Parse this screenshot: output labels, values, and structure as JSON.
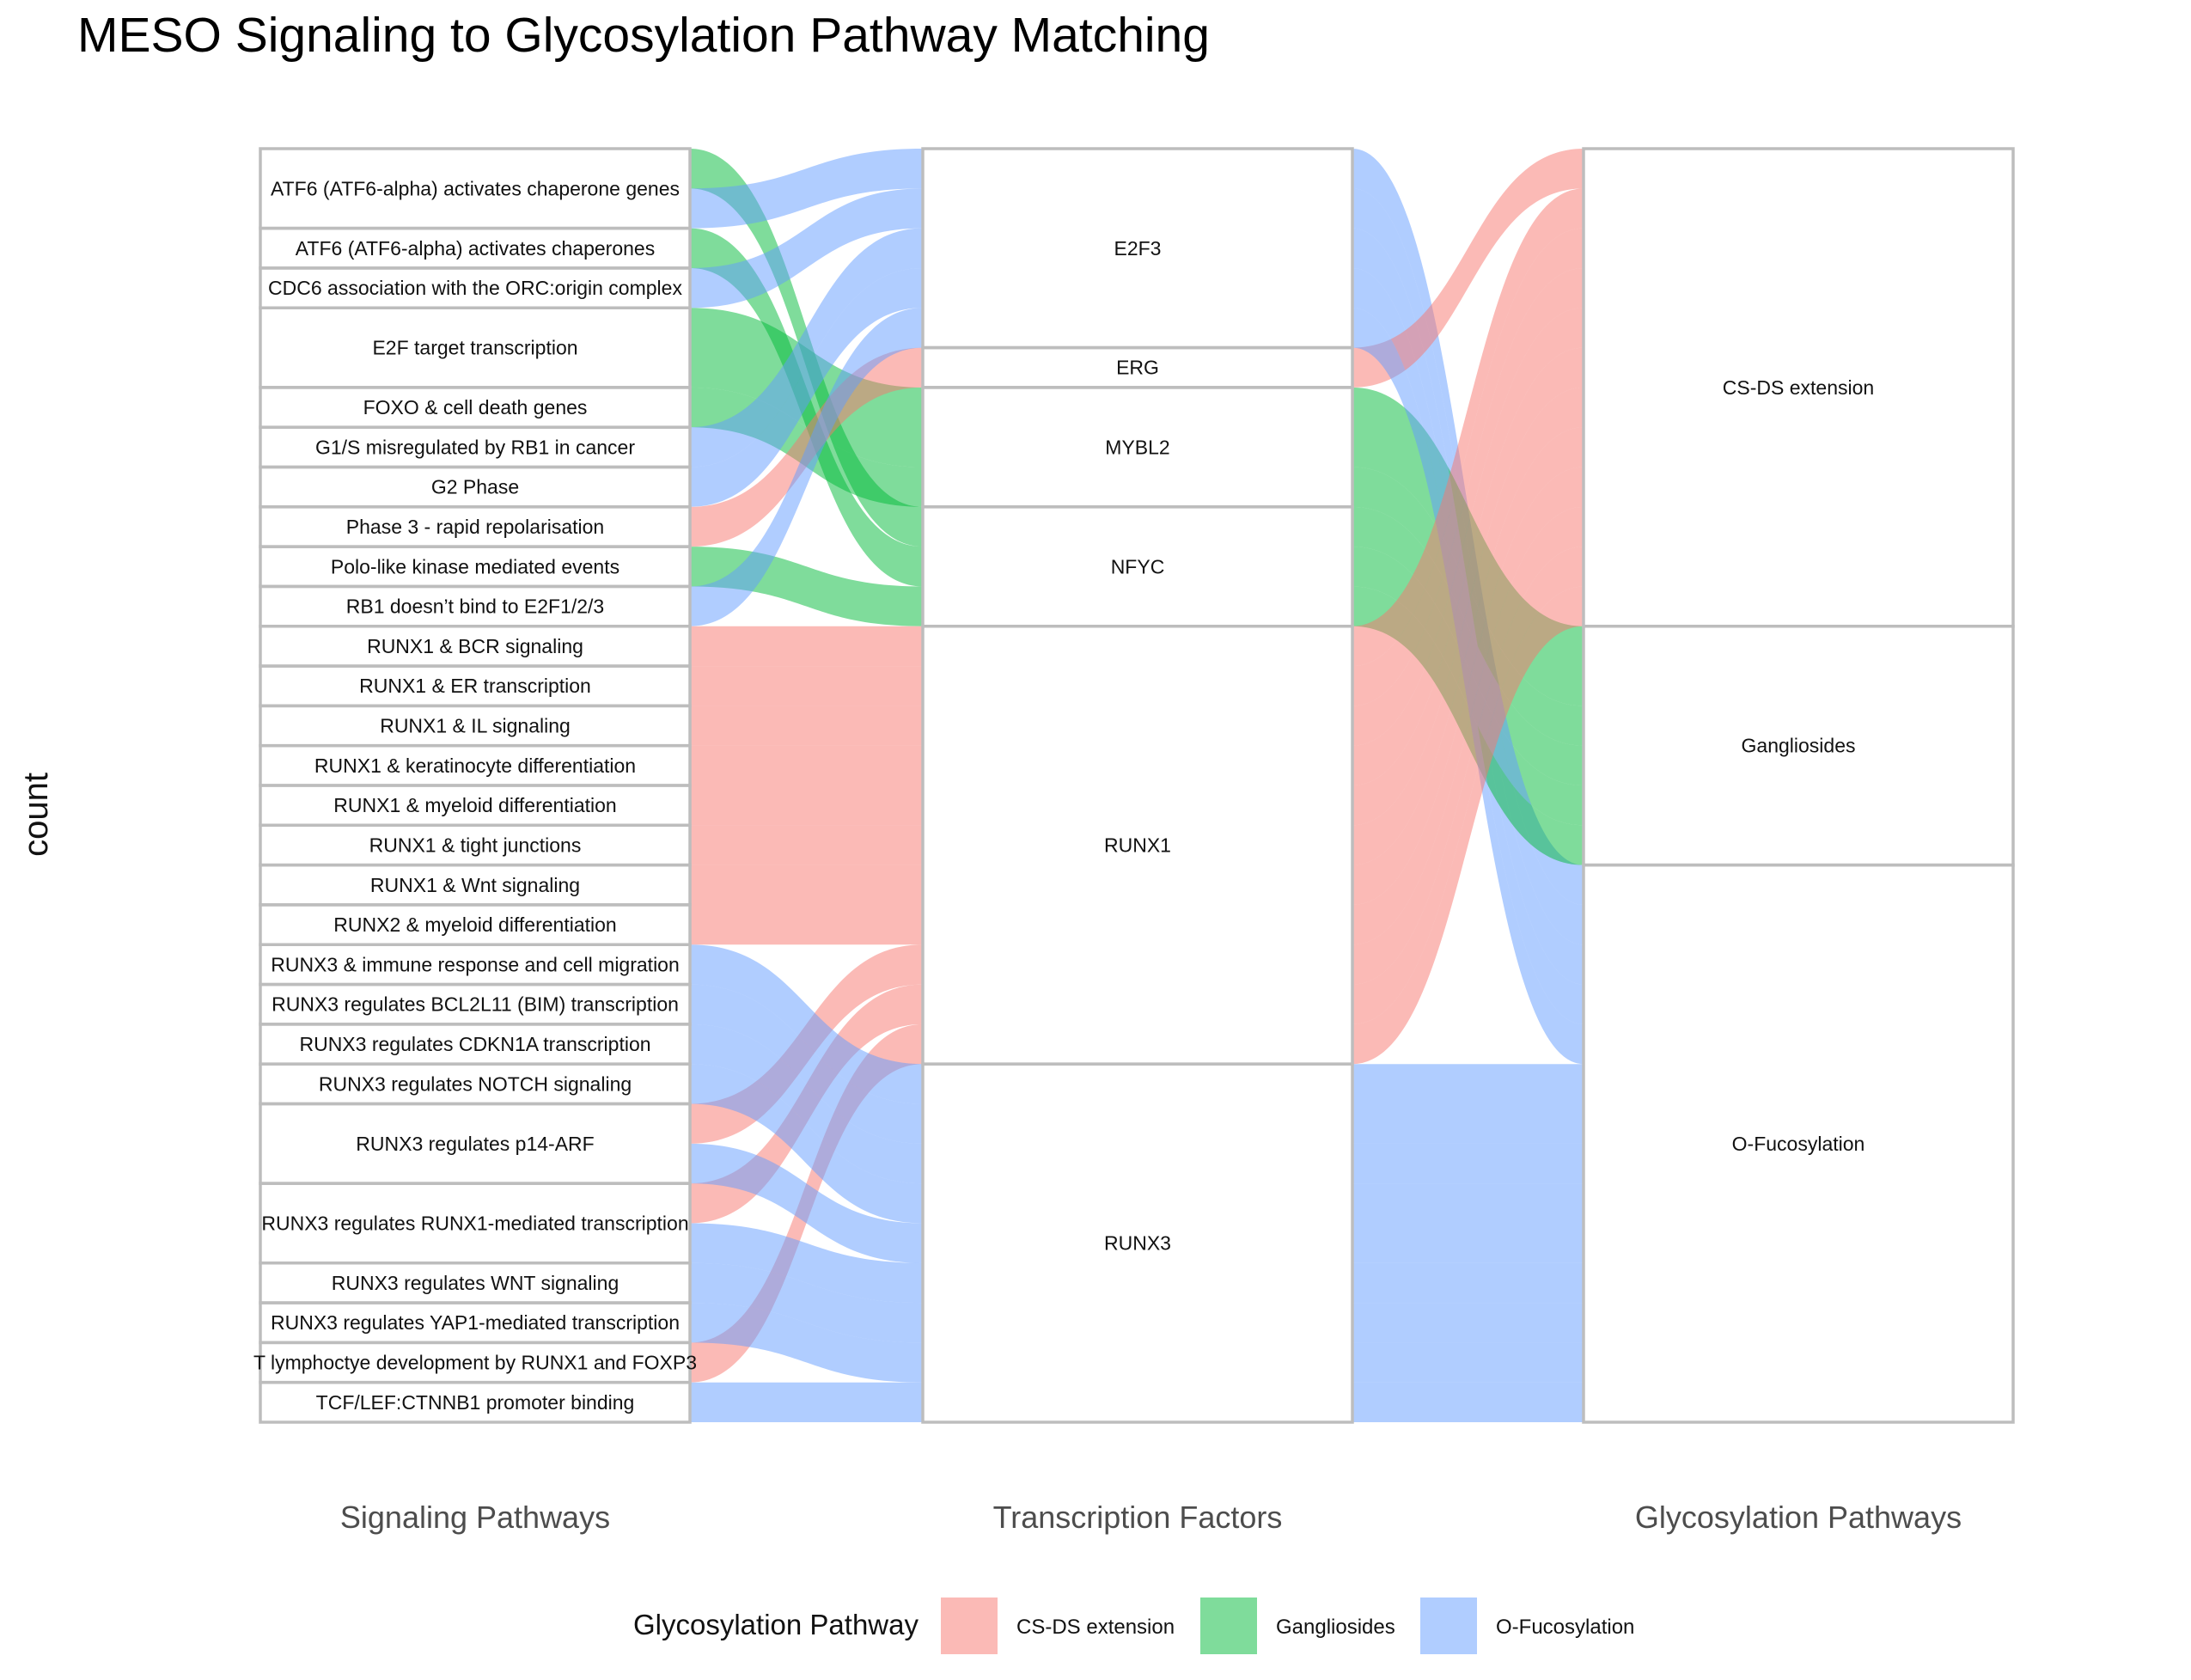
{
  "chart_data": {
    "type": "alluvial",
    "title": "MESO Signaling to Glycosylation Pathway Matching",
    "ylabel": "count",
    "axes": [
      "Signaling Pathways",
      "Transcription Factors",
      "Glycosylation Pathways"
    ],
    "legend": {
      "title": "Glycosylation Pathway",
      "position": "bottom",
      "entries": [
        "CS-DS extension",
        "Gangliosides",
        "O-Fucosylation"
      ]
    },
    "colors": {
      "CS-DS extension": "#f8766d",
      "Gangliosides": "#00ba38",
      "O-Fucosylation": "#619cff"
    },
    "signaling_pathways": [
      "ATF6 (ATF6-alpha) activates chaperone genes",
      "ATF6 (ATF6-alpha) activates chaperones",
      "CDC6 association with the ORC:origin complex",
      "E2F target transcription",
      "FOXO & cell death genes",
      "G1/S misregulated by RB1 in cancer",
      "G2 Phase",
      "Phase 3 - rapid repolarisation",
      "Polo-like kinase mediated events",
      "RB1 doesn’t bind to E2F1/2/3",
      "RUNX1 & BCR signaling",
      "RUNX1 & ER transcription",
      "RUNX1 & IL signaling",
      "RUNX1 & keratinocyte differentiation",
      "RUNX1 & myeloid differentiation",
      "RUNX1 & tight junctions",
      "RUNX1 & Wnt signaling",
      "RUNX2 & myeloid differentiation",
      "RUNX3 & immune response and cell migration",
      "RUNX3 regulates BCL2L11 (BIM) transcription",
      "RUNX3 regulates CDKN1A transcription",
      "RUNX3 regulates NOTCH signaling",
      "RUNX3 regulates p14-ARF",
      "RUNX3 regulates RUNX1-mediated transcription",
      "RUNX3 regulates WNT signaling",
      "RUNX3 regulates YAP1-mediated transcription",
      "T lymphoctye development by RUNX1 and FOXP3",
      "TCF/LEF:CTNNB1 promoter binding"
    ],
    "transcription_factors": [
      "E2F3",
      "ERG",
      "MYBL2",
      "NFYC",
      "RUNX1",
      "RUNX3"
    ],
    "glycosylation_pathways": [
      "CS-DS extension",
      "Gangliosides",
      "O-Fucosylation"
    ],
    "flows": [
      {
        "signaling": "ATF6 (ATF6-alpha) activates chaperone genes",
        "tf": "NFYC",
        "glyco": "Gangliosides",
        "count": 1
      },
      {
        "signaling": "ATF6 (ATF6-alpha) activates chaperones",
        "tf": "NFYC",
        "glyco": "Gangliosides",
        "count": 1
      },
      {
        "signaling": "ATF6 (ATF6-alpha) activates chaperone genes",
        "tf": "E2F3",
        "glyco": "O-Fucosylation",
        "count": 1
      },
      {
        "signaling": "CDC6 association with the ORC:origin complex",
        "tf": "E2F3",
        "glyco": "O-Fucosylation",
        "count": 1
      },
      {
        "signaling": "E2F target transcription",
        "tf": "MYBL2",
        "glyco": "Gangliosides",
        "count": 2
      },
      {
        "signaling": "FOXO & cell death genes",
        "tf": "MYBL2",
        "glyco": "Gangliosides",
        "count": 1
      },
      {
        "signaling": "G1/S misregulated by RB1 in cancer",
        "tf": "E2F3",
        "glyco": "O-Fucosylation",
        "count": 1
      },
      {
        "signaling": "G2 Phase",
        "tf": "E2F3",
        "glyco": "O-Fucosylation",
        "count": 1
      },
      {
        "signaling": "Phase 3 - rapid repolarisation",
        "tf": "ERG",
        "glyco": "CS-DS extension",
        "count": 1
      },
      {
        "signaling": "Polo-like kinase mediated events",
        "tf": "NFYC",
        "glyco": "Gangliosides",
        "count": 1
      },
      {
        "signaling": "RB1 doesn’t bind to E2F1/2/3",
        "tf": "E2F3",
        "glyco": "O-Fucosylation",
        "count": 1
      },
      {
        "signaling": "RUNX1 & BCR signaling",
        "tf": "RUNX1",
        "glyco": "CS-DS extension",
        "count": 1
      },
      {
        "signaling": "RUNX1 & ER transcription",
        "tf": "RUNX1",
        "glyco": "CS-DS extension",
        "count": 1
      },
      {
        "signaling": "RUNX1 & IL signaling",
        "tf": "RUNX1",
        "glyco": "CS-DS extension",
        "count": 1
      },
      {
        "signaling": "RUNX1 & keratinocyte differentiation",
        "tf": "RUNX1",
        "glyco": "CS-DS extension",
        "count": 1
      },
      {
        "signaling": "RUNX1 & myeloid differentiation",
        "tf": "RUNX1",
        "glyco": "CS-DS extension",
        "count": 1
      },
      {
        "signaling": "RUNX1 & tight junctions",
        "tf": "RUNX1",
        "glyco": "CS-DS extension",
        "count": 1
      },
      {
        "signaling": "RUNX1 & Wnt signaling",
        "tf": "RUNX1",
        "glyco": "CS-DS extension",
        "count": 1
      },
      {
        "signaling": "RUNX2 & myeloid differentiation",
        "tf": "RUNX1",
        "glyco": "CS-DS extension",
        "count": 1
      },
      {
        "signaling": "RUNX3 regulates p14-ARF",
        "tf": "RUNX1",
        "glyco": "CS-DS extension",
        "count": 1
      },
      {
        "signaling": "RUNX3 regulates RUNX1-mediated transcription",
        "tf": "RUNX1",
        "glyco": "CS-DS extension",
        "count": 1
      },
      {
        "signaling": "T lymphoctye development by RUNX1 and FOXP3",
        "tf": "RUNX1",
        "glyco": "CS-DS extension",
        "count": 1
      },
      {
        "signaling": "RUNX3 & immune response and cell migration",
        "tf": "RUNX3",
        "glyco": "O-Fucosylation",
        "count": 1
      },
      {
        "signaling": "RUNX3 regulates BCL2L11 (BIM) transcription",
        "tf": "RUNX3",
        "glyco": "O-Fucosylation",
        "count": 1
      },
      {
        "signaling": "RUNX3 regulates CDKN1A transcription",
        "tf": "RUNX3",
        "glyco": "O-Fucosylation",
        "count": 1
      },
      {
        "signaling": "RUNX3 regulates NOTCH signaling",
        "tf": "RUNX3",
        "glyco": "O-Fucosylation",
        "count": 1
      },
      {
        "signaling": "RUNX3 regulates p14-ARF",
        "tf": "RUNX3",
        "glyco": "O-Fucosylation",
        "count": 1
      },
      {
        "signaling": "RUNX3 regulates RUNX1-mediated transcription",
        "tf": "RUNX3",
        "glyco": "O-Fucosylation",
        "count": 1
      },
      {
        "signaling": "RUNX3 regulates WNT signaling",
        "tf": "RUNX3",
        "glyco": "O-Fucosylation",
        "count": 1
      },
      {
        "signaling": "RUNX3 regulates YAP1-mediated transcription",
        "tf": "RUNX3",
        "glyco": "O-Fucosylation",
        "count": 1
      },
      {
        "signaling": "TCF/LEF:CTNNB1 promoter binding",
        "tf": "RUNX3",
        "glyco": "O-Fucosylation",
        "count": 1
      }
    ]
  }
}
